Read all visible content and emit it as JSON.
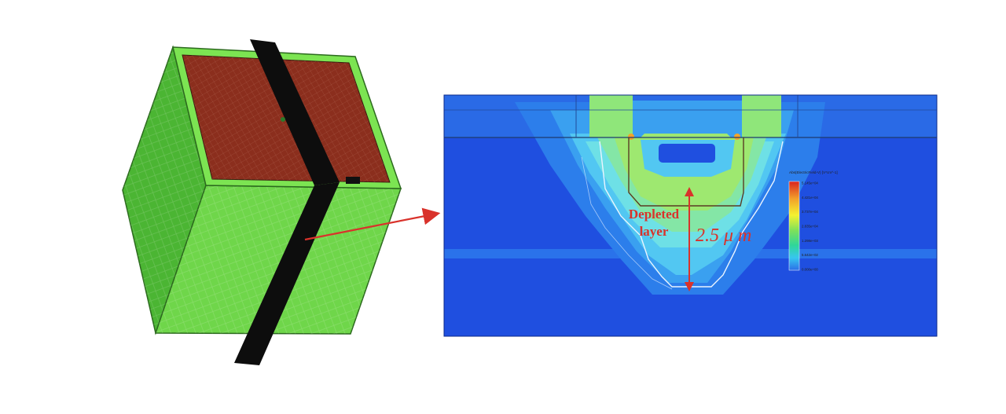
{
  "annotation": {
    "depleted_line1": "Depleted",
    "depleted_line2": "layer",
    "depth": "2.5 μ m"
  },
  "legend": {
    "title": "Abs(ElectricField-V) [V*cm^-1]",
    "ticks": [
      "5.145e+04",
      "4.421e+04",
      "3.737e+04",
      "2.835e+04",
      "1.298e+03",
      "5.642e+02",
      "0.000e+00"
    ],
    "gradient": [
      "#d9231f",
      "#f3a32a",
      "#f4f230",
      "#7fe15a",
      "#2fd69a",
      "#37c6f0",
      "#2b6fe8"
    ]
  },
  "colors": {
    "annotation_red": "#d9322b",
    "cube_green": "#6fd64a",
    "cube_top_red": "#8b2e1d",
    "field_background": "#1f4fe0"
  }
}
